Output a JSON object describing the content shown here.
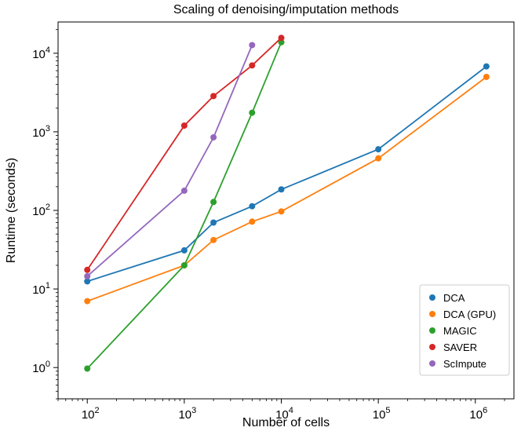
{
  "chart_data": {
    "type": "line",
    "title": "Scaling of denoising/imputation methods",
    "xlabel": "Number of cells",
    "ylabel": "Runtime (seconds)",
    "xscale": "log",
    "yscale": "log",
    "xlim": [
      50,
      2500000
    ],
    "ylim": [
      0.4,
      25000
    ],
    "grid": false,
    "legend_position": "lower-right",
    "xticks": [
      {
        "value": 100,
        "base": "10",
        "exp": "2"
      },
      {
        "value": 1000,
        "base": "10",
        "exp": "3"
      },
      {
        "value": 10000,
        "base": "10",
        "exp": "4"
      },
      {
        "value": 100000,
        "base": "10",
        "exp": "5"
      },
      {
        "value": 1000000,
        "base": "10",
        "exp": "6"
      }
    ],
    "yticks": [
      {
        "value": 1,
        "base": "10",
        "exp": "0"
      },
      {
        "value": 10,
        "base": "10",
        "exp": "1"
      },
      {
        "value": 100,
        "base": "10",
        "exp": "2"
      },
      {
        "value": 1000,
        "base": "10",
        "exp": "3"
      },
      {
        "value": 10000,
        "base": "10",
        "exp": "4"
      }
    ],
    "series": [
      {
        "name": "DCA",
        "color": "#1f77b4",
        "x": [
          100,
          1000,
          2000,
          5000,
          10000,
          100000,
          1300000
        ],
        "y": [
          12.5,
          31,
          70,
          113,
          185,
          600,
          6800
        ]
      },
      {
        "name": "DCA (GPU)",
        "color": "#ff7f0e",
        "x": [
          100,
          1000,
          2000,
          5000,
          10000,
          100000,
          1300000
        ],
        "y": [
          7,
          20,
          42,
          72,
          97,
          460,
          5000
        ]
      },
      {
        "name": "MAGIC",
        "color": "#2ca02c",
        "x": [
          100,
          1000,
          2000,
          5000,
          10000
        ],
        "y": [
          0.97,
          20,
          128,
          1750,
          13800
        ]
      },
      {
        "name": "SAVER",
        "color": "#d62728",
        "x": [
          100,
          1000,
          2000,
          5000,
          10000
        ],
        "y": [
          17.5,
          1200,
          2850,
          7000,
          15700
        ]
      },
      {
        "name": "ScImpute",
        "color": "#9467bd",
        "x": [
          100,
          1000,
          2000,
          5000
        ],
        "y": [
          14.5,
          178,
          850,
          12700
        ]
      }
    ]
  }
}
